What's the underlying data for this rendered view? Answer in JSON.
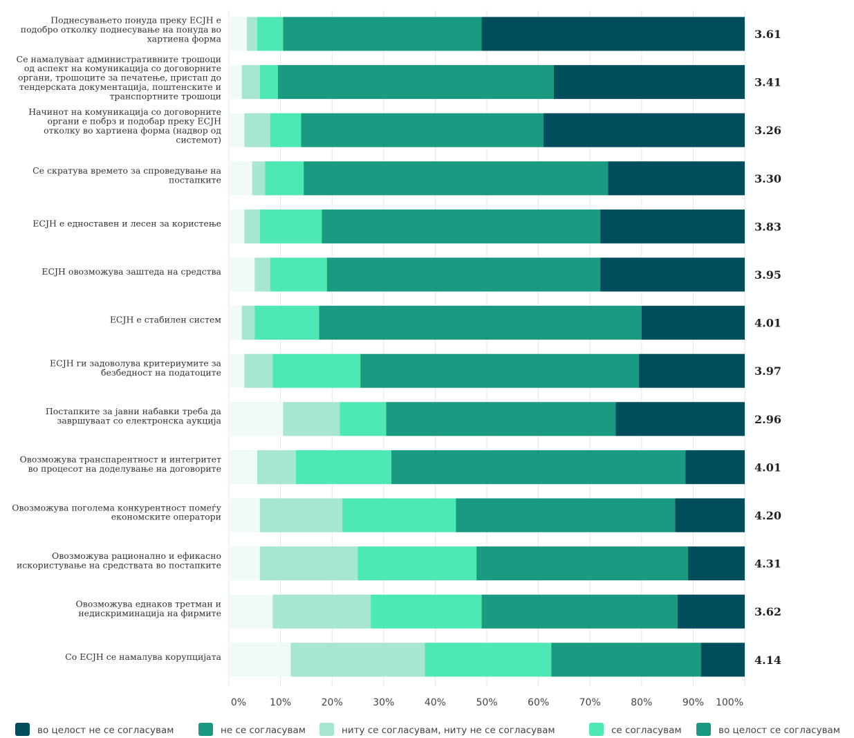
{
  "chart_data": {
    "type": "bar",
    "orientation": "horizontal",
    "stacked": true,
    "normalized": true,
    "xlim": [
      0,
      100
    ],
    "x_ticks": [
      "0%",
      "10%",
      "20%",
      "30%",
      "40%",
      "50%",
      "60%",
      "70%",
      "80%",
      "90%",
      "100%"
    ],
    "categories": [
      "Поднесувањето понуда преку ЕСЈН е подобро отколку поднесување на понуда во хартиена форма",
      "Се намалуваат административните трошоци од аспект на комуникација со договорните органи, трошоците за печатење, пристап до тендерската документација, поштенските и транспортните трошоци",
      "Начинот на комуникација со договорните органи е побрз и подобар преку ЕСЈН отколку во хартиена форма (надвор од системот)",
      "Се скратува времето за спроведување на постапките",
      "ЕСЈН е едноставен и лесен за користење",
      "ЕСЈН овозможува заштеда на средства",
      "ЕСЈН е стабилен систем",
      "ЕСЈН ги задоволува критериумите за безбедност на податоците",
      "Постапките за јавни набавки треба да завршуваат со електронска аукција",
      "Овозможува транспарентност и интегритет во процесот на доделување на договорите",
      "Овозможува поголема конкурентност помеѓу економските оператори",
      "Овозможува рационално и ефикасно искористување на средствата во постапките",
      "Овозможува еднаков третман и недискриминација на фирмите",
      "Со ЕСЈН се намалува корупцијата"
    ],
    "category_lines": [
      [
        "Поднесувањето понуда преку ЕСЈН е",
        "подобро отколку поднесување на понуда во",
        "хартиена форма"
      ],
      [
        "Се намалуваат административните трошоци",
        "од аспект на комуникација со договорните",
        "органи, трошоците за печатење, пристап до",
        "тендерската документација, поштенските и",
        "транспортните трошоци"
      ],
      [
        "Начинот на комуникација со договорните",
        "органи е побрз и подобар преку ЕСЈН",
        "отколку во хартиена форма (надвор од",
        "системот)"
      ],
      [
        "Се скратува времето за спроведување на",
        "постапките"
      ],
      [
        "ЕСЈН е едноставен и лесен за користење"
      ],
      [
        "ЕСЈН овозможува заштеда на средства"
      ],
      [
        "ЕСЈН е стабилен систем"
      ],
      [
        "ЕСЈН ги задоволува критериумите за",
        "безбедност на податоците"
      ],
      [
        "Постапките за јавни набавки треба да",
        "завршуваат со електронска аукција"
      ],
      [
        "Овозможува транспарентност и интегритет",
        "во процесот на доделување на договорите"
      ],
      [
        "Овозможува поголема конкурентност помеѓу",
        "економските оператори"
      ],
      [
        "Овозможува рационално и ефикасно",
        "искористување на средствата во постапките"
      ],
      [
        "Овозможува еднаков третман и",
        "недискриминација на фирмите"
      ],
      [
        "Со ЕСЈН се намалува корупцијата"
      ]
    ],
    "means": [
      "3.61",
      "3.41",
      "3.26",
      "3.30",
      "3.83",
      "3.95",
      "4.01",
      "3.97",
      "2.96",
      "4.01",
      "4.20",
      "4.31",
      "3.62",
      "4.14"
    ],
    "series": [
      {
        "color": "#f0faf6",
        "values": [
          3.5,
          2.5,
          3,
          4.5,
          3,
          5,
          2.5,
          3,
          10.5,
          5.5,
          6,
          6,
          8.5,
          12
        ]
      },
      {
        "color": "#a6e6d2",
        "values": [
          2,
          3.5,
          5,
          2.5,
          3,
          3,
          2.5,
          5.5,
          11,
          7.5,
          16,
          19,
          19,
          26
        ]
      },
      {
        "color": "#4ee8b4",
        "values": [
          5,
          3.5,
          6,
          7.5,
          12,
          11,
          12.5,
          17,
          9,
          18.5,
          22,
          23,
          21.5,
          24.5
        ]
      },
      {
        "color": "#1a9a80",
        "values": [
          38.5,
          53.5,
          47,
          59,
          54,
          53,
          62.5,
          54,
          44.5,
          57,
          42.5,
          41,
          38,
          29
        ]
      },
      {
        "color": "#004d5c",
        "values": [
          51,
          37,
          39,
          26.5,
          28,
          28,
          20,
          20.5,
          25,
          11.5,
          13.5,
          11,
          13,
          8.5
        ]
      }
    ],
    "legend": {
      "placement": "bottom",
      "entries": [
        {
          "label": "во целост не се согласувам",
          "color": "#004d5c"
        },
        {
          "label": "не се согласувам",
          "color": "#1a9a80"
        },
        {
          "label": "ниту се согласувам, ниту не се согласувам",
          "color": "#a6e6d2"
        },
        {
          "label": "се согласувам",
          "color": "#4ee8b4"
        },
        {
          "label": "во целост се согласувам",
          "color": "#1a9a80"
        }
      ]
    }
  }
}
